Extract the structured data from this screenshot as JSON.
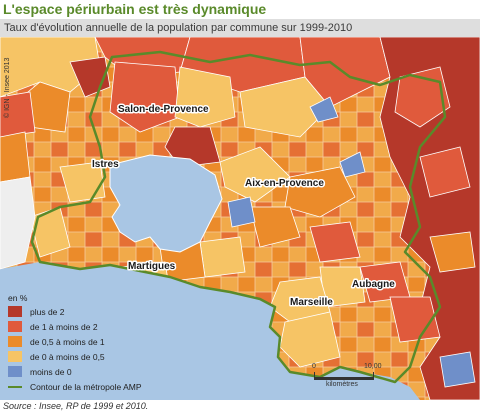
{
  "title": "L'espace périurbain est très dynamique",
  "subtitle": "Taux d'évolution annuelle de la population par commune sur 1999-2010",
  "credit": "© IGN - Insee 2013",
  "cities": {
    "salon": "Salon-de-Provence",
    "istres": "Istres",
    "aix": "Aix-en-Provence",
    "martigues": "Martigues",
    "marseille": "Marseille",
    "aubagne": "Aubagne"
  },
  "legend": {
    "title": "en %",
    "items": [
      {
        "label": "plus de 2",
        "color": "#b5382a"
      },
      {
        "label": "de 1 à moins de 2",
        "color": "#e05a3c"
      },
      {
        "label": "de 0,5 à moins de 1",
        "color": "#eb8b2a"
      },
      {
        "label": "de 0 à moins de 0,5",
        "color": "#f6c465"
      },
      {
        "label": "moins de 0",
        "color": "#6f8fc9"
      }
    ],
    "contour_label": "Contour de la métropole AMP",
    "contour_color": "#5a8a2a"
  },
  "scale": {
    "zero": "0",
    "max": "10,00",
    "unit": "kilomètres"
  },
  "source": "Source : Insee, RP de 1999 et 2010.",
  "colors": {
    "sea": "#a9c6e4",
    "outside": "#eeeeee",
    "border": "#ffffff"
  }
}
